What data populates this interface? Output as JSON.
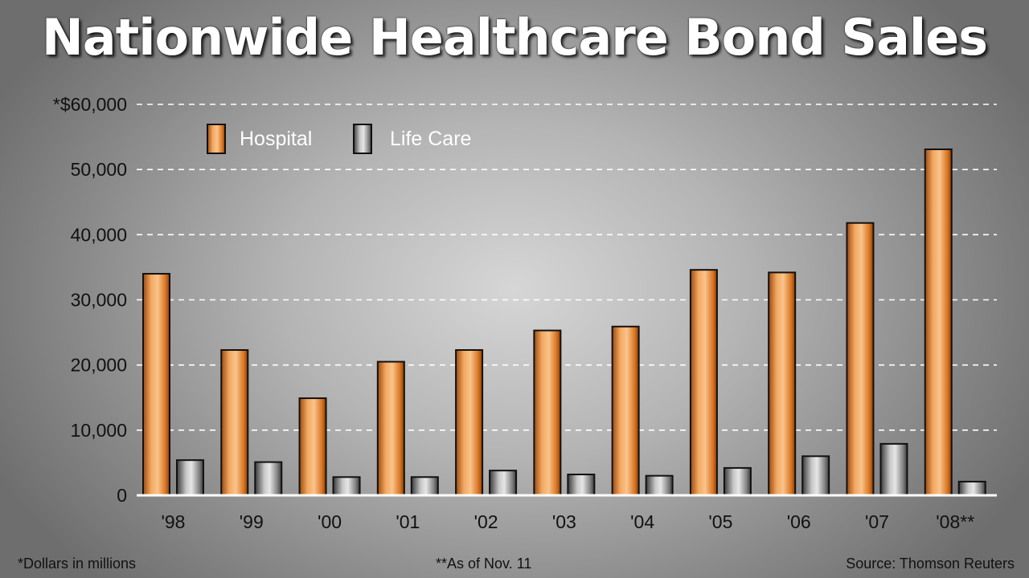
{
  "chart_data": {
    "type": "bar",
    "title": "Nationwide Healthcare Bond Sales",
    "categories": [
      "'98",
      "'99",
      "'00",
      "'01",
      "'02",
      "'03",
      "'04",
      "'05",
      "'06",
      "'07",
      "'08**"
    ],
    "series": [
      {
        "name": "Hospital",
        "values": [
          34000,
          22300,
          14900,
          20500,
          22300,
          25300,
          25900,
          34600,
          34200,
          41800,
          53100
        ]
      },
      {
        "name": "Life Care",
        "values": [
          5400,
          5100,
          2800,
          2800,
          3800,
          3200,
          3000,
          4200,
          6000,
          7900,
          2100
        ]
      }
    ],
    "y_ticks": [
      "0",
      "10,000",
      "20,000",
      "30,000",
      "40,000",
      "50,000",
      "*$60,000"
    ],
    "ylim": [
      0,
      60000
    ],
    "grid": true,
    "legend_position": "top-left",
    "colors": {
      "Hospital": "#e8832a",
      "Life Care": "#7d7d7d"
    },
    "footnotes": {
      "left": "*Dollars in millions",
      "center": "**As of Nov. 11",
      "right": "Source: Thomson Reuters"
    }
  }
}
